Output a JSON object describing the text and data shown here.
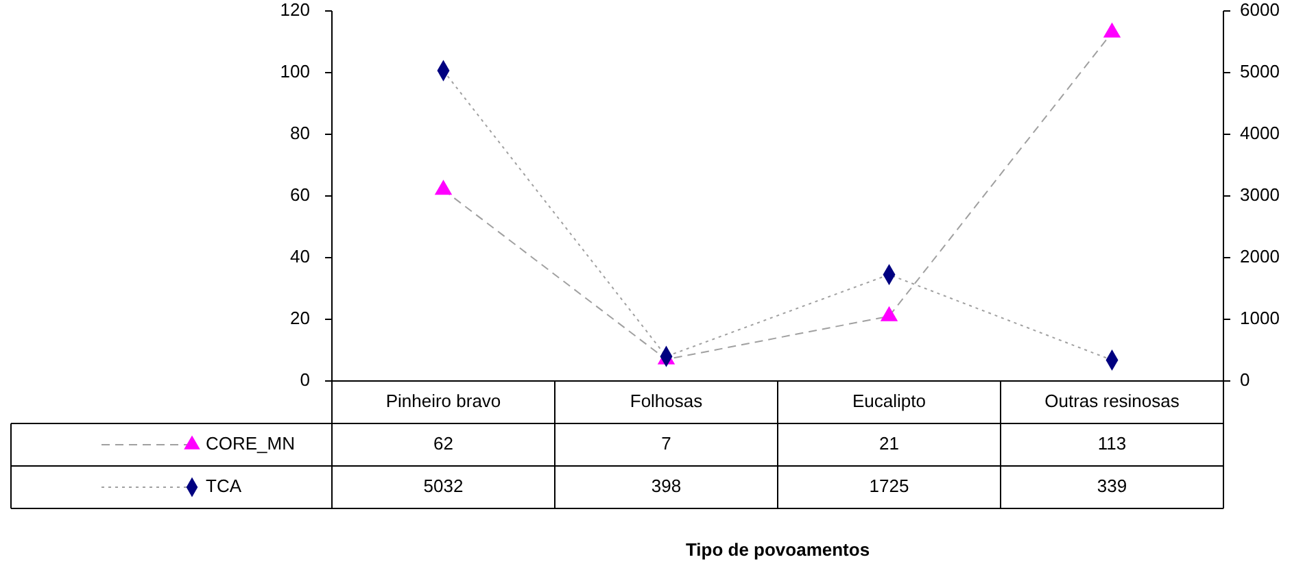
{
  "chart_data": {
    "type": "line",
    "annotations": [
      "Tipo de povoamentos"
    ],
    "categories": [
      "Pinheiro bravo",
      "Folhosas",
      "Eucalipto",
      "Outras resinosas"
    ],
    "series": [
      {
        "name": "CORE_MN",
        "color": "#ff00ff",
        "marker": "triangle",
        "line_style": "dashed",
        "values": [
          62,
          7,
          21,
          113
        ]
      },
      {
        "name": "TCA",
        "color": "#000080",
        "marker": "diamond",
        "line_style": "dotted",
        "axis": "y2",
        "values": [
          5032,
          398,
          1725,
          339
        ]
      }
    ],
    "ylim": [
      0,
      120
    ],
    "yticks": [
      0,
      20,
      40,
      60,
      80,
      100,
      120
    ],
    "y2lim": [
      0,
      6000
    ],
    "y2ticks": [
      0,
      1000,
      2000,
      3000,
      4000,
      5000,
      6000
    ],
    "grid": false,
    "data_labels": true,
    "legend": "bottom left"
  }
}
